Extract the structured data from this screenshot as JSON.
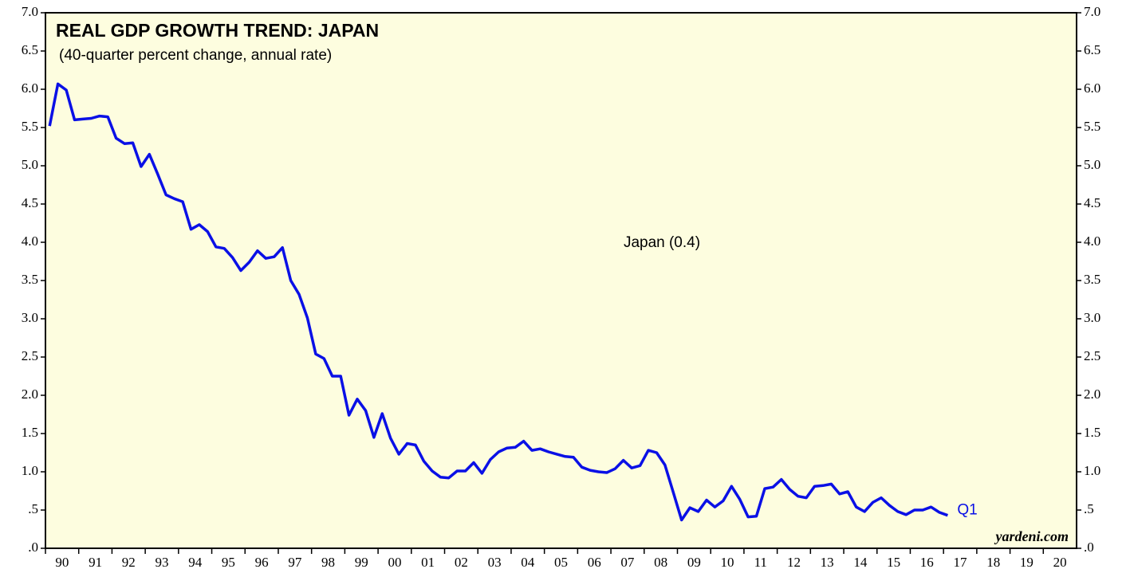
{
  "chart_data": {
    "type": "line",
    "title": "REAL GDP GROWTH TREND: JAPAN",
    "subtitle": "(40-quarter percent change, annual rate)",
    "annotation": "Japan (0.4)",
    "end_label": "Q1",
    "source": "yardeni.com",
    "background": "#fdfddf",
    "xlim": [
      1990,
      2021
    ],
    "xticks": [
      {
        "value": 1990,
        "label": "90"
      },
      {
        "value": 1991,
        "label": "91"
      },
      {
        "value": 1992,
        "label": "92"
      },
      {
        "value": 1993,
        "label": "93"
      },
      {
        "value": 1994,
        "label": "94"
      },
      {
        "value": 1995,
        "label": "95"
      },
      {
        "value": 1996,
        "label": "96"
      },
      {
        "value": 1997,
        "label": "97"
      },
      {
        "value": 1998,
        "label": "98"
      },
      {
        "value": 1999,
        "label": "99"
      },
      {
        "value": 2000,
        "label": "00"
      },
      {
        "value": 2001,
        "label": "01"
      },
      {
        "value": 2002,
        "label": "02"
      },
      {
        "value": 2003,
        "label": "03"
      },
      {
        "value": 2004,
        "label": "04"
      },
      {
        "value": 2005,
        "label": "05"
      },
      {
        "value": 2006,
        "label": "06"
      },
      {
        "value": 2007,
        "label": "07"
      },
      {
        "value": 2008,
        "label": "08"
      },
      {
        "value": 2009,
        "label": "09"
      },
      {
        "value": 2010,
        "label": "10"
      },
      {
        "value": 2011,
        "label": "11"
      },
      {
        "value": 2012,
        "label": "12"
      },
      {
        "value": 2013,
        "label": "13"
      },
      {
        "value": 2014,
        "label": "14"
      },
      {
        "value": 2015,
        "label": "15"
      },
      {
        "value": 2016,
        "label": "16"
      },
      {
        "value": 2017,
        "label": "17"
      },
      {
        "value": 2018,
        "label": "18"
      },
      {
        "value": 2019,
        "label": "19"
      },
      {
        "value": 2020,
        "label": "20"
      }
    ],
    "ylim": [
      0,
      7
    ],
    "yticks": [
      {
        "value": 0,
        "label": ".0"
      },
      {
        "value": 0.5,
        "label": ".5"
      },
      {
        "value": 1,
        "label": "1.0"
      },
      {
        "value": 1.5,
        "label": "1.5"
      },
      {
        "value": 2,
        "label": "2.0"
      },
      {
        "value": 2.5,
        "label": "2.5"
      },
      {
        "value": 3,
        "label": "3.0"
      },
      {
        "value": 3.5,
        "label": "3.5"
      },
      {
        "value": 4,
        "label": "4.0"
      },
      {
        "value": 4.5,
        "label": "4.5"
      },
      {
        "value": 5,
        "label": "5.0"
      },
      {
        "value": 5.5,
        "label": "5.5"
      },
      {
        "value": 6,
        "label": "6.0"
      },
      {
        "value": 6.5,
        "label": "6.5"
      },
      {
        "value": 7,
        "label": "7.0"
      }
    ],
    "series": [
      {
        "name": "Japan",
        "color": "#0a10e6",
        "x": [
          1990.125,
          1990.375,
          1990.625,
          1990.875,
          1991.125,
          1991.375,
          1991.625,
          1991.875,
          1992.125,
          1992.375,
          1992.625,
          1992.875,
          1993.125,
          1993.375,
          1993.625,
          1993.875,
          1994.125,
          1994.375,
          1994.625,
          1994.875,
          1995.125,
          1995.375,
          1995.625,
          1995.875,
          1996.125,
          1996.375,
          1996.625,
          1996.875,
          1997.125,
          1997.375,
          1997.625,
          1997.875,
          1998.125,
          1998.375,
          1998.625,
          1998.875,
          1999.125,
          1999.375,
          1999.625,
          1999.875,
          2000.125,
          2000.375,
          2000.625,
          2000.875,
          2001.125,
          2001.375,
          2001.625,
          2001.875,
          2002.125,
          2002.375,
          2002.625,
          2002.875,
          2003.125,
          2003.375,
          2003.625,
          2003.875,
          2004.125,
          2004.375,
          2004.625,
          2004.875,
          2005.125,
          2005.375,
          2005.625,
          2005.875,
          2006.125,
          2006.375,
          2006.625,
          2006.875,
          2007.125,
          2007.375,
          2007.625,
          2007.875,
          2008.125,
          2008.375,
          2008.625,
          2008.875,
          2009.125,
          2009.375,
          2009.625,
          2009.875,
          2010.125,
          2010.375,
          2010.625,
          2010.875,
          2011.125,
          2011.375,
          2011.625,
          2011.875,
          2012.125,
          2012.375,
          2012.625,
          2012.875,
          2013.125,
          2013.375,
          2013.625,
          2013.875,
          2014.125,
          2014.375,
          2014.625,
          2014.875,
          2015.125,
          2015.375,
          2015.625,
          2015.875,
          2016.125,
          2016.375,
          2016.625,
          2016.875,
          2017.125
        ],
        "values": [
          5.52,
          6.07,
          5.99,
          5.6,
          5.61,
          5.62,
          5.65,
          5.64,
          5.36,
          5.29,
          5.3,
          4.99,
          5.15,
          4.89,
          4.62,
          4.57,
          4.53,
          4.17,
          4.23,
          4.14,
          3.94,
          3.92,
          3.8,
          3.63,
          3.74,
          3.89,
          3.79,
          3.81,
          3.93,
          3.5,
          3.32,
          3.01,
          2.54,
          2.48,
          2.25,
          2.25,
          1.74,
          1.95,
          1.8,
          1.45,
          1.76,
          1.44,
          1.23,
          1.37,
          1.35,
          1.14,
          1.01,
          0.93,
          0.92,
          1.01,
          1.01,
          1.12,
          0.98,
          1.16,
          1.26,
          1.31,
          1.32,
          1.4,
          1.28,
          1.3,
          1.26,
          1.23,
          1.2,
          1.19,
          1.06,
          1.02,
          1.0,
          0.99,
          1.04,
          1.15,
          1.05,
          1.08,
          1.28,
          1.25,
          1.09,
          0.73,
          0.37,
          0.53,
          0.48,
          0.63,
          0.54,
          0.62,
          0.81,
          0.64,
          0.41,
          0.42,
          0.78,
          0.8,
          0.9,
          0.77,
          0.68,
          0.66,
          0.81,
          0.82,
          0.84,
          0.71,
          0.74,
          0.54,
          0.48,
          0.6,
          0.66,
          0.56,
          0.48,
          0.44,
          0.5,
          0.5,
          0.54,
          0.47,
          0.43
        ]
      }
    ]
  }
}
